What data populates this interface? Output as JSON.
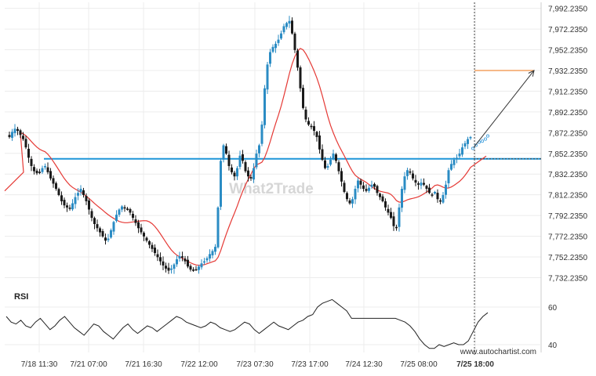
{
  "chart_data": [
    {
      "type": "candlestick",
      "xlabel": "",
      "ylabel": "",
      "x_ticks": [
        "7/18 11:30",
        "7/21 07:00",
        "7/21 16:30",
        "7/22 12:00",
        "7/23 07:30",
        "7/23 17:00",
        "7/24 12:30",
        "7/25 08:00",
        "7/25 18:00"
      ],
      "y_ticks": [
        "7,992.2350",
        "7,972.2350",
        "7,952.2350",
        "7,932.2350",
        "7,912.2350",
        "7,892.2350",
        "7,872.2350",
        "7,852.2350",
        "7,832.2350",
        "7,812.2350",
        "7,792.2350",
        "7,772.2350",
        "7,752.2350",
        "7,732.2350"
      ],
      "ylim": [
        7722,
        7998
      ],
      "grid": true,
      "support_resistance_level": 7847,
      "target_level": 7932.235,
      "projection_arrow": {
        "from": [
          148,
          7858
        ],
        "to": [
          166,
          7932
        ]
      },
      "current_time_marker": "7/25 18:00",
      "series": [
        {
          "kind": "candles",
          "color_up": "#2b8cc4",
          "color_down": "#1a1a1a"
        },
        {
          "kind": "moving-average",
          "color": "#e53935"
        }
      ],
      "price_path": [
        [
          0,
          7868
        ],
        [
          1,
          7873
        ],
        [
          2,
          7876
        ],
        [
          3,
          7874
        ],
        [
          4,
          7870
        ],
        [
          5,
          7866
        ],
        [
          6,
          7858
        ],
        [
          7,
          7848
        ],
        [
          8,
          7840
        ],
        [
          9,
          7835
        ],
        [
          10,
          7833
        ],
        [
          11,
          7834
        ],
        [
          12,
          7838
        ],
        [
          13,
          7840
        ],
        [
          14,
          7834
        ],
        [
          15,
          7828
        ],
        [
          16,
          7823
        ],
        [
          17,
          7818
        ],
        [
          18,
          7812
        ],
        [
          19,
          7806
        ],
        [
          20,
          7802
        ],
        [
          21,
          7800
        ],
        [
          22,
          7799
        ],
        [
          23,
          7804
        ],
        [
          24,
          7810
        ],
        [
          25,
          7814
        ],
        [
          26,
          7818
        ],
        [
          27,
          7812
        ],
        [
          28,
          7806
        ],
        [
          29,
          7798
        ],
        [
          30,
          7790
        ],
        [
          31,
          7784
        ],
        [
          32,
          7780
        ],
        [
          33,
          7776
        ],
        [
          34,
          7772
        ],
        [
          35,
          7768
        ],
        [
          36,
          7770
        ],
        [
          37,
          7778
        ],
        [
          38,
          7786
        ],
        [
          39,
          7793
        ],
        [
          40,
          7798
        ],
        [
          41,
          7801
        ],
        [
          42,
          7800
        ],
        [
          43,
          7798
        ],
        [
          44,
          7795
        ],
        [
          45,
          7790
        ],
        [
          46,
          7785
        ],
        [
          47,
          7780
        ],
        [
          48,
          7776
        ],
        [
          49,
          7772
        ],
        [
          50,
          7768
        ],
        [
          51,
          7764
        ],
        [
          52,
          7760
        ],
        [
          53,
          7756
        ],
        [
          54,
          7752
        ],
        [
          55,
          7748
        ],
        [
          56,
          7744
        ],
        [
          57,
          7741
        ],
        [
          58,
          7739
        ],
        [
          59,
          7741
        ],
        [
          60,
          7745
        ],
        [
          61,
          7750
        ],
        [
          62,
          7753
        ],
        [
          63,
          7752
        ],
        [
          64,
          7748
        ],
        [
          65,
          7743
        ],
        [
          66,
          7740
        ],
        [
          67,
          7739
        ],
        [
          68,
          7740
        ],
        [
          69,
          7743
        ],
        [
          70,
          7746
        ],
        [
          71,
          7748
        ],
        [
          72,
          7751
        ],
        [
          73,
          7755
        ],
        [
          74,
          7758
        ],
        [
          75,
          7762
        ],
        [
          76,
          7800
        ],
        [
          77,
          7845
        ],
        [
          78,
          7860
        ],
        [
          79,
          7852
        ],
        [
          80,
          7840
        ],
        [
          81,
          7834
        ],
        [
          82,
          7830
        ],
        [
          83,
          7838
        ],
        [
          84,
          7850
        ],
        [
          85,
          7845
        ],
        [
          86,
          7835
        ],
        [
          87,
          7830
        ],
        [
          88,
          7828
        ],
        [
          89,
          7838
        ],
        [
          90,
          7852
        ],
        [
          91,
          7860
        ],
        [
          92,
          7880
        ],
        [
          93,
          7915
        ],
        [
          94,
          7938
        ],
        [
          95,
          7950
        ],
        [
          96,
          7955
        ],
        [
          97,
          7958
        ],
        [
          98,
          7962
        ],
        [
          99,
          7968
        ],
        [
          100,
          7975
        ],
        [
          101,
          7978
        ],
        [
          102,
          7980
        ],
        [
          103,
          7968
        ],
        [
          104,
          7952
        ],
        [
          105,
          7935
        ],
        [
          106,
          7915
        ],
        [
          107,
          7896
        ],
        [
          108,
          7885
        ],
        [
          109,
          7880
        ],
        [
          110,
          7878
        ],
        [
          111,
          7874
        ],
        [
          112,
          7868
        ],
        [
          113,
          7856
        ],
        [
          114,
          7846
        ],
        [
          115,
          7838
        ],
        [
          116,
          7840
        ],
        [
          117,
          7846
        ],
        [
          118,
          7852
        ],
        [
          119,
          7845
        ],
        [
          120,
          7835
        ],
        [
          121,
          7825
        ],
        [
          122,
          7815
        ],
        [
          123,
          7808
        ],
        [
          124,
          7804
        ],
        [
          125,
          7808
        ],
        [
          126,
          7818
        ],
        [
          127,
          7826
        ],
        [
          128,
          7822
        ],
        [
          129,
          7818
        ],
        [
          130,
          7816
        ],
        [
          131,
          7819
        ],
        [
          132,
          7822
        ],
        [
          133,
          7820
        ],
        [
          134,
          7814
        ],
        [
          135,
          7810
        ],
        [
          136,
          7806
        ],
        [
          137,
          7800
        ],
        [
          138,
          7795
        ],
        [
          139,
          7790
        ],
        [
          140,
          7782
        ],
        [
          141,
          7780
        ],
        [
          142,
          7800
        ],
        [
          143,
          7818
        ],
        [
          144,
          7830
        ],
        [
          145,
          7836
        ],
        [
          146,
          7834
        ],
        [
          147,
          7828
        ],
        [
          148,
          7824
        ],
        [
          149,
          7822
        ],
        [
          150,
          7824
        ],
        [
          151,
          7822
        ],
        [
          152,
          7818
        ],
        [
          153,
          7814
        ],
        [
          154,
          7812
        ],
        [
          155,
          7815
        ],
        [
          156,
          7808
        ],
        [
          157,
          7806
        ],
        [
          158,
          7812
        ],
        [
          159,
          7822
        ],
        [
          160,
          7836
        ],
        [
          161,
          7842
        ],
        [
          162,
          7846
        ],
        [
          163,
          7848
        ],
        [
          164,
          7852
        ],
        [
          165,
          7858
        ],
        [
          166,
          7862
        ],
        [
          167,
          7866
        ],
        [
          168,
          7868
        ]
      ]
    },
    {
      "type": "line",
      "title": "RSI",
      "ylim": [
        35,
        65
      ],
      "y_ticks": [
        "60",
        "40"
      ],
      "x_ticks": [],
      "values": [
        55,
        52,
        51,
        53,
        50,
        49,
        52,
        54,
        51,
        48,
        50,
        53,
        55,
        52,
        49,
        47,
        45,
        48,
        51,
        50,
        47,
        45,
        43,
        46,
        49,
        51,
        48,
        46,
        48,
        50,
        49,
        47,
        49,
        51,
        53,
        55,
        54,
        52,
        51,
        50,
        49,
        50,
        52,
        51,
        49,
        48,
        47,
        48,
        50,
        52,
        51,
        48,
        46,
        48,
        50,
        52,
        50,
        49,
        48,
        50,
        52,
        53,
        55,
        56,
        60,
        62,
        63,
        64,
        62,
        60,
        58,
        54,
        54,
        54,
        54,
        54,
        54,
        54,
        54,
        54,
        54,
        53,
        52,
        50,
        47,
        43,
        40,
        38,
        38,
        40,
        39,
        40,
        41,
        40,
        40,
        42,
        47,
        52,
        55,
        57
      ]
    }
  ],
  "watermark": "What2Trade",
  "attribution": "www.autochartist.com"
}
